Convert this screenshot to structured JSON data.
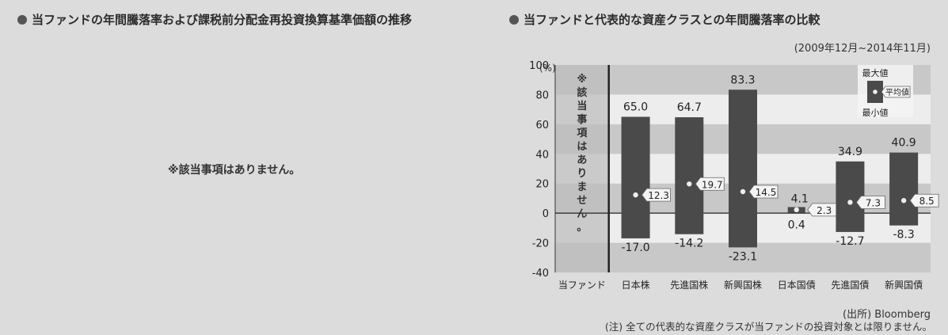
{
  "left_panel": {
    "title": "当ファンドの年間騰落率および課税前分配金再投資換算基準価額の推移",
    "no_data_note": "※該当事項はありません。"
  },
  "right_panel": {
    "title": "当ファンドと代表的な資産クラスとの年間騰落率の比較",
    "period": "(2009年12月~2014年11月)",
    "source": "(出所) Bloomberg",
    "footnote": "(注) 全ての代表的な資産クラスが当ファンドの投資対象とは限りません。"
  },
  "chart_data": {
    "type": "bar",
    "ylabel": "(%)",
    "ylim": [
      -40,
      100
    ],
    "yticks": [
      "100",
      "80",
      "60",
      "40",
      "20",
      "0",
      "-20",
      "-40"
    ],
    "grid": "alternating horizontal bands",
    "categories": [
      "当ファンド",
      "日本株",
      "先進国株",
      "新興国株",
      "日本国債",
      "先進国債",
      "新興国債"
    ],
    "fund_note": "※該当事項はありません。",
    "series": [
      {
        "name": "最大値",
        "values": [
          null,
          65.0,
          64.7,
          83.3,
          4.1,
          34.9,
          40.9
        ]
      },
      {
        "name": "平均値",
        "values": [
          null,
          12.3,
          19.7,
          14.5,
          2.3,
          7.3,
          8.5
        ]
      },
      {
        "name": "最小値",
        "values": [
          null,
          -17.0,
          -14.2,
          -23.1,
          0.4,
          -12.7,
          -8.3
        ]
      }
    ],
    "max_labels": [
      "",
      "65.0",
      "64.7",
      "83.3",
      "4.1",
      "34.9",
      "40.9"
    ],
    "avg_labels": [
      "",
      "12.3",
      "19.7",
      "14.5",
      "2.3",
      "7.3",
      "8.5"
    ],
    "min_labels": [
      "",
      "-17.0",
      "-14.2",
      "-23.1",
      "0.4",
      "-12.7",
      "-8.3"
    ],
    "legend": {
      "max": "最大値",
      "avg": "平均値",
      "min": "最小値",
      "position": "top-right"
    },
    "colors": {
      "bar": "#4a4a4a",
      "band_dark": "#c8c8c8",
      "band_light": "#ededed",
      "fund_column": "#bdbdbd"
    }
  }
}
